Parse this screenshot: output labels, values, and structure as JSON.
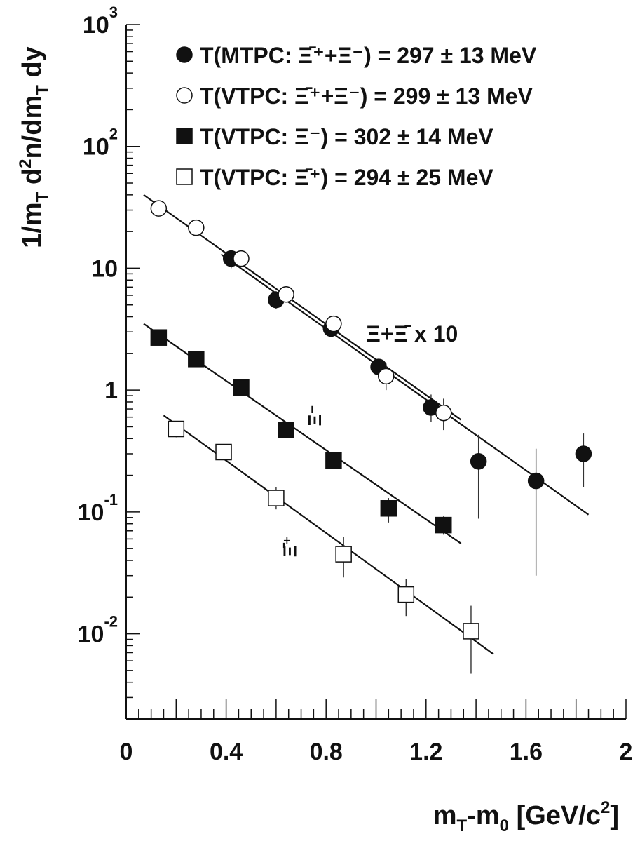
{
  "chart_data": {
    "type": "scatter",
    "title": "",
    "xlabel": "m_T-m_0 [GeV/c^2]",
    "ylabel": "1/m_T d^2n/dm_T dy",
    "x_scale": "linear",
    "y_scale": "log",
    "xlim": [
      0,
      2
    ],
    "ylim": [
      0.002,
      1000
    ],
    "grid": false,
    "legend_position": "top-right",
    "x_ticks": [
      {
        "value": 0,
        "label": "0"
      },
      {
        "value": 0.4,
        "label": "0.4"
      },
      {
        "value": 0.8,
        "label": "0.8"
      },
      {
        "value": 1.2,
        "label": "1.2"
      },
      {
        "value": 1.6,
        "label": "1.6"
      },
      {
        "value": 2,
        "label": "2"
      }
    ],
    "y_ticks": [
      {
        "value": 0.01,
        "base": "10",
        "exp": "-2"
      },
      {
        "value": 0.1,
        "base": "10",
        "exp": "-1"
      },
      {
        "value": 1,
        "base": "1",
        "exp": ""
      },
      {
        "value": 10,
        "base": "10",
        "exp": ""
      },
      {
        "value": 100,
        "base": "10",
        "exp": "2"
      },
      {
        "value": 1000,
        "base": "10",
        "exp": "3"
      }
    ],
    "legend": [
      {
        "marker": "filled-circle",
        "label": "T(MTPC: Ξ̄⁺+Ξ⁻) = 297 ± 13 MeV"
      },
      {
        "marker": "open-circle",
        "label": "T(VTPC: Ξ̄⁺+Ξ⁻) = 299 ± 13 MeV"
      },
      {
        "marker": "filled-square",
        "label": "T(VTPC: Ξ⁻) = 302 ± 14 MeV"
      },
      {
        "marker": "open-square",
        "label": "T(VTPC: Ξ̄⁺) = 294 ± 25 MeV"
      }
    ],
    "annotations": [
      {
        "text": "Ξ+Ξ̄ x 10",
        "x": 0.96,
        "y": 2.5
      },
      {
        "text": "Ξ⁻",
        "x": 0.78,
        "y": 0.62
      },
      {
        "text": "Ξ̄⁺",
        "x": 0.68,
        "y": 0.052
      }
    ],
    "series": [
      {
        "marker": "filled-circle",
        "points": [
          {
            "x": 0.42,
            "y": 12,
            "lo": 10,
            "hi": 14
          },
          {
            "x": 0.6,
            "y": 5.5,
            "lo": 4.6,
            "hi": 6.5
          },
          {
            "x": 0.82,
            "y": 3.2,
            "lo": 2.8,
            "hi": 3.7
          },
          {
            "x": 1.01,
            "y": 1.55,
            "lo": 1.3,
            "hi": 1.8
          },
          {
            "x": 1.22,
            "y": 0.72,
            "lo": 0.55,
            "hi": 0.92
          },
          {
            "x": 1.41,
            "y": 0.26,
            "lo": 0.088,
            "hi": 0.43
          },
          {
            "x": 1.64,
            "y": 0.18,
            "lo": 0.03,
            "hi": 0.33
          },
          {
            "x": 1.83,
            "y": 0.3,
            "lo": 0.16,
            "hi": 0.44
          }
        ],
        "fit": {
          "x": [
            0.38,
            1.85
          ],
          "y": [
            13,
            0.095
          ]
        }
      },
      {
        "marker": "open-circle",
        "points": [
          {
            "x": 0.13,
            "y": 31,
            "lo": 28,
            "hi": 34
          },
          {
            "x": 0.28,
            "y": 21.5,
            "lo": 19.5,
            "hi": 23.5
          },
          {
            "x": 0.46,
            "y": 12,
            "lo": 10.5,
            "hi": 13.5
          },
          {
            "x": 0.64,
            "y": 6.1,
            "lo": 5.3,
            "hi": 7
          },
          {
            "x": 0.83,
            "y": 3.5,
            "lo": 3,
            "hi": 4
          },
          {
            "x": 1.04,
            "y": 1.3,
            "lo": 1,
            "hi": 1.65
          },
          {
            "x": 1.27,
            "y": 0.65,
            "lo": 0.47,
            "hi": 0.85
          }
        ],
        "fit": {
          "x": [
            0.07,
            1.34
          ],
          "y": [
            40,
            0.57
          ]
        }
      },
      {
        "marker": "filled-square",
        "points": [
          {
            "x": 0.13,
            "y": 2.7,
            "lo": 2.4,
            "hi": 3
          },
          {
            "x": 0.28,
            "y": 1.8,
            "lo": 1.6,
            "hi": 2
          },
          {
            "x": 0.46,
            "y": 1.05,
            "lo": 0.95,
            "hi": 1.15
          },
          {
            "x": 0.64,
            "y": 0.47,
            "lo": 0.41,
            "hi": 0.54
          },
          {
            "x": 0.83,
            "y": 0.265,
            "lo": 0.23,
            "hi": 0.3
          },
          {
            "x": 1.05,
            "y": 0.107,
            "lo": 0.082,
            "hi": 0.13
          },
          {
            "x": 1.27,
            "y": 0.078,
            "lo": 0.065,
            "hi": 0.092
          }
        ],
        "fit": {
          "x": [
            0.07,
            1.34
          ],
          "y": [
            3.5,
            0.055
          ]
        }
      },
      {
        "marker": "open-square",
        "points": [
          {
            "x": 0.2,
            "y": 0.48,
            "lo": 0.41,
            "hi": 0.55
          },
          {
            "x": 0.39,
            "y": 0.31,
            "lo": 0.27,
            "hi": 0.35
          },
          {
            "x": 0.6,
            "y": 0.13,
            "lo": 0.105,
            "hi": 0.16
          },
          {
            "x": 0.87,
            "y": 0.045,
            "lo": 0.029,
            "hi": 0.062
          },
          {
            "x": 1.12,
            "y": 0.021,
            "lo": 0.014,
            "hi": 0.028
          },
          {
            "x": 1.38,
            "y": 0.0105,
            "lo": 0.0047,
            "hi": 0.017
          }
        ],
        "fit": {
          "x": [
            0.15,
            1.47
          ],
          "y": [
            0.62,
            0.0068
          ]
        }
      }
    ]
  }
}
